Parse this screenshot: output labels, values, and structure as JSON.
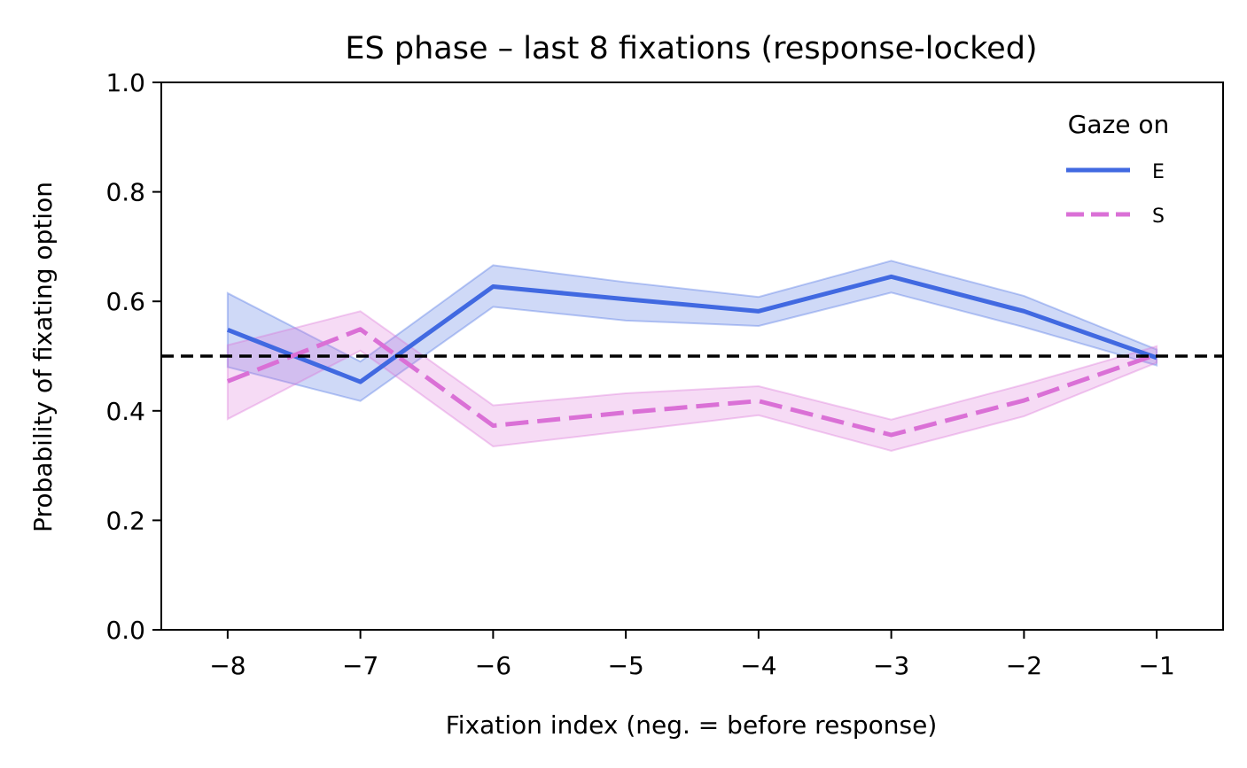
{
  "chart_data": {
    "type": "line",
    "title": "ES phase – last 8 fixations (response-locked)",
    "xlabel": "Fixation index (neg. = before response)",
    "ylabel": "Probability of fixating option",
    "x": [
      -8,
      -7,
      -6,
      -5,
      -4,
      -3,
      -2,
      -1
    ],
    "xlim": [
      -8.5,
      -0.5
    ],
    "ylim": [
      0.0,
      1.0
    ],
    "xticks": [
      -8,
      -7,
      -6,
      -5,
      -4,
      -3,
      -2,
      -1
    ],
    "xtick_labels": [
      "−8",
      "−7",
      "−6",
      "−5",
      "−4",
      "−3",
      "−2",
      "−1"
    ],
    "yticks": [
      0.0,
      0.2,
      0.4,
      0.6,
      0.8,
      1.0
    ],
    "ytick_labels": [
      "0.0",
      "0.2",
      "0.4",
      "0.6",
      "0.8",
      "1.0"
    ],
    "reference_line": {
      "y": 0.5,
      "style": "dashed",
      "color": "#000000"
    },
    "legend": {
      "title": "Gaze on",
      "position": "top-right"
    },
    "grid": false,
    "series": [
      {
        "name": "E",
        "color": "#4169e1",
        "style": "solid",
        "values": [
          0.548,
          0.453,
          0.627,
          0.604,
          0.582,
          0.645,
          0.582,
          0.497
        ],
        "lower": [
          0.48,
          0.418,
          0.59,
          0.565,
          0.555,
          0.616,
          0.553,
          0.483
        ],
        "upper": [
          0.615,
          0.49,
          0.666,
          0.635,
          0.608,
          0.674,
          0.61,
          0.512
        ]
      },
      {
        "name": "S",
        "color": "#da70d6",
        "style": "dashed",
        "values": [
          0.454,
          0.549,
          0.373,
          0.397,
          0.418,
          0.356,
          0.419,
          0.503
        ],
        "lower": [
          0.385,
          0.51,
          0.335,
          0.363,
          0.392,
          0.327,
          0.39,
          0.488
        ],
        "upper": [
          0.52,
          0.582,
          0.41,
          0.432,
          0.445,
          0.384,
          0.448,
          0.518
        ]
      }
    ]
  }
}
